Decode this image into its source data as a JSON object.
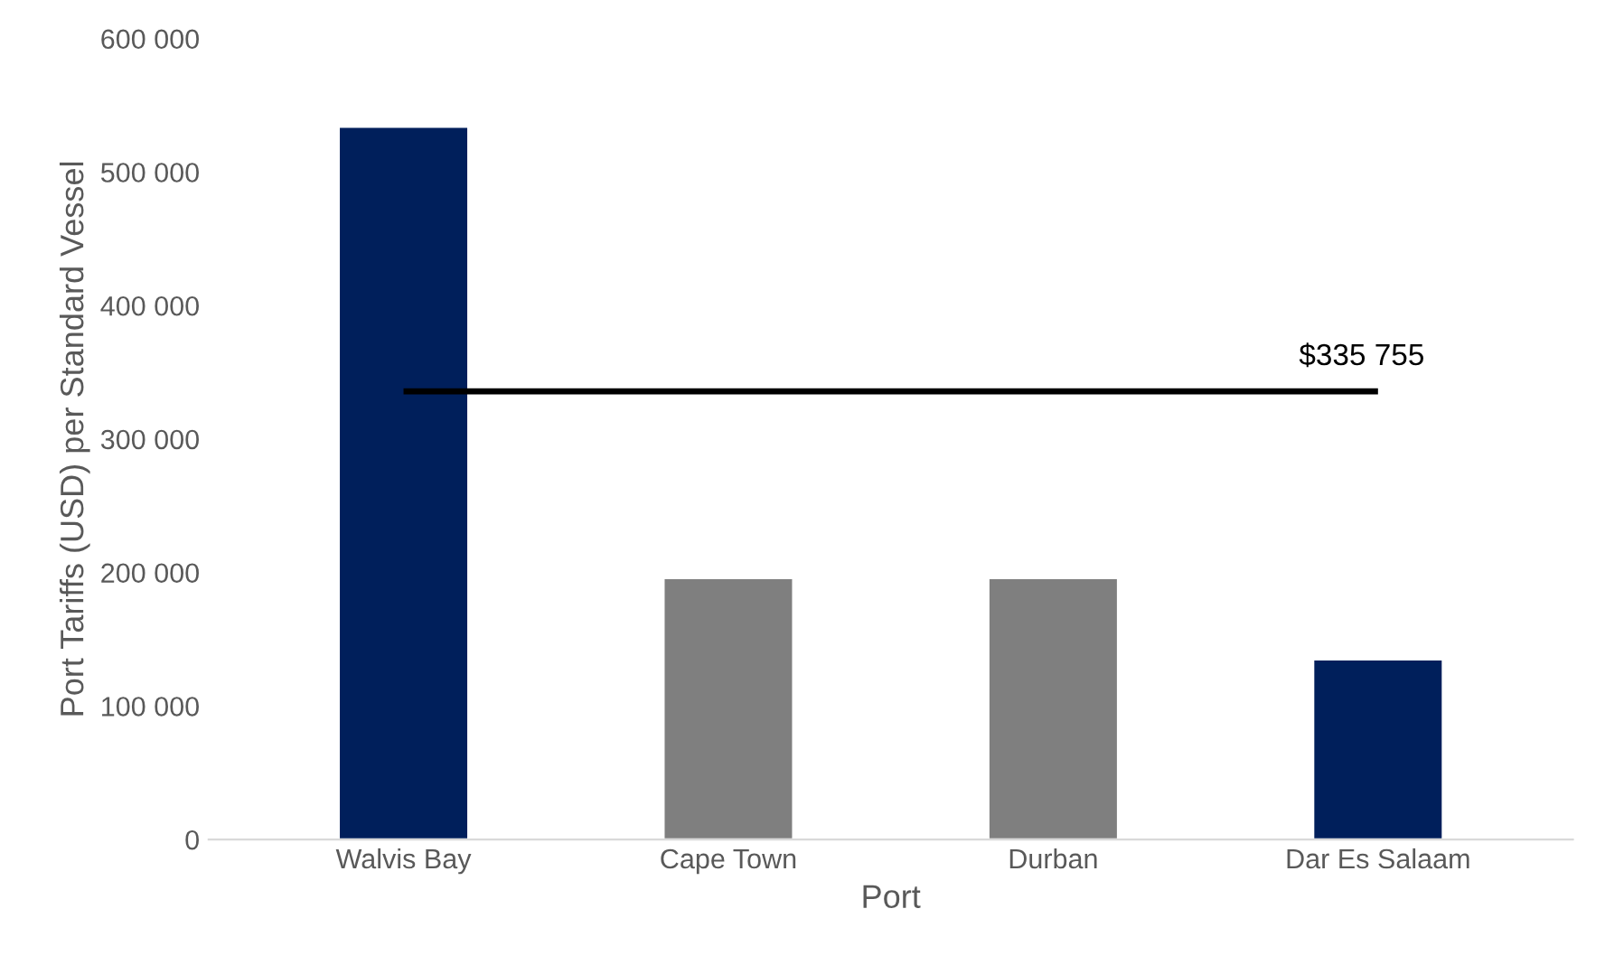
{
  "chart_data": {
    "type": "bar",
    "xlabel": "Port",
    "ylabel": "Port Tariffs (USD) per Standard Vessel",
    "categories": [
      "Walvis Bay",
      "Cape Town",
      "Durban",
      "Dar Es Salaam"
    ],
    "values": [
      534000,
      196000,
      196000,
      135000
    ],
    "colors": [
      "#001f5b",
      "#7f7f7f",
      "#7f7f7f",
      "#001f5b"
    ],
    "ylim": [
      0,
      600000
    ],
    "yticks": [
      {
        "value": 0,
        "label": "0"
      },
      {
        "value": 100000,
        "label": "100 000"
      },
      {
        "value": 200000,
        "label": "200 000"
      },
      {
        "value": 300000,
        "label": "300 000"
      },
      {
        "value": 400000,
        "label": "400 000"
      },
      {
        "value": 500000,
        "label": "500 000"
      },
      {
        "value": 600000,
        "label": "600 000"
      }
    ],
    "ref_lines": [
      {
        "axis": "y",
        "value": 335755,
        "label": "$335 755",
        "color": "#000000",
        "line_style": "solid"
      }
    ],
    "grid": false,
    "legend": false
  }
}
